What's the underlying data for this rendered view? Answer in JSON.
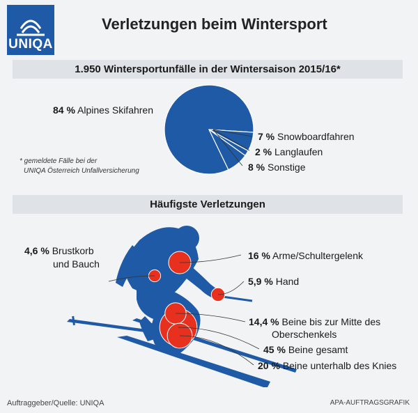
{
  "brand": {
    "logo_text": "UNIQA",
    "color": "#1f5aa6"
  },
  "title": "Verletzungen beim Wintersport",
  "section1": {
    "heading": "1.950 Wintersportunfälle in der Wintersaison 2015/16*"
  },
  "note": {
    "line1": "* gemeldete Fälle bei der",
    "line2": "UNIQA Österreich Unfallversicherung"
  },
  "section2": {
    "heading": "Häufigste Verletzungen"
  },
  "footer": {
    "source": "Auftraggeber/Quelle: UNIQA",
    "credit": "APA-AUFTRAGSGRAFIK"
  },
  "chart_data": [
    {
      "type": "pie",
      "title": "1.950 Wintersportunfälle in der Wintersaison 2015/16*",
      "slices": [
        {
          "label": "Alpines Skifahren",
          "value": 84,
          "display": "84 %"
        },
        {
          "label": "Snowboardfahren",
          "value": 7,
          "display": "7 %"
        },
        {
          "label": "Langlaufen",
          "value": 2,
          "display": "2 %"
        },
        {
          "label": "Sonstige",
          "value": 8,
          "display": "8 %"
        }
      ],
      "color": "#1f5aa6"
    },
    {
      "type": "bubble",
      "title": "Häufigste Verletzungen",
      "items": [
        {
          "label": "Brustkorb",
          "label2": "und Bauch",
          "value": 4.6,
          "display": "4,6 %"
        },
        {
          "label": "Arme/Schultergelenk",
          "value": 16,
          "display": "16 %"
        },
        {
          "label": "Hand",
          "value": 5.9,
          "display": "5,9 %"
        },
        {
          "label": "Beine bis zur Mitte des",
          "label2": "Oberschenkels",
          "value": 14.4,
          "display": "14,4 %"
        },
        {
          "label": "Beine gesamt",
          "value": 45,
          "display": "45 %"
        },
        {
          "label": "Beine unterhalb des Knies",
          "value": 20,
          "display": "20 %"
        }
      ],
      "bubble_color": "#e8301f"
    }
  ]
}
